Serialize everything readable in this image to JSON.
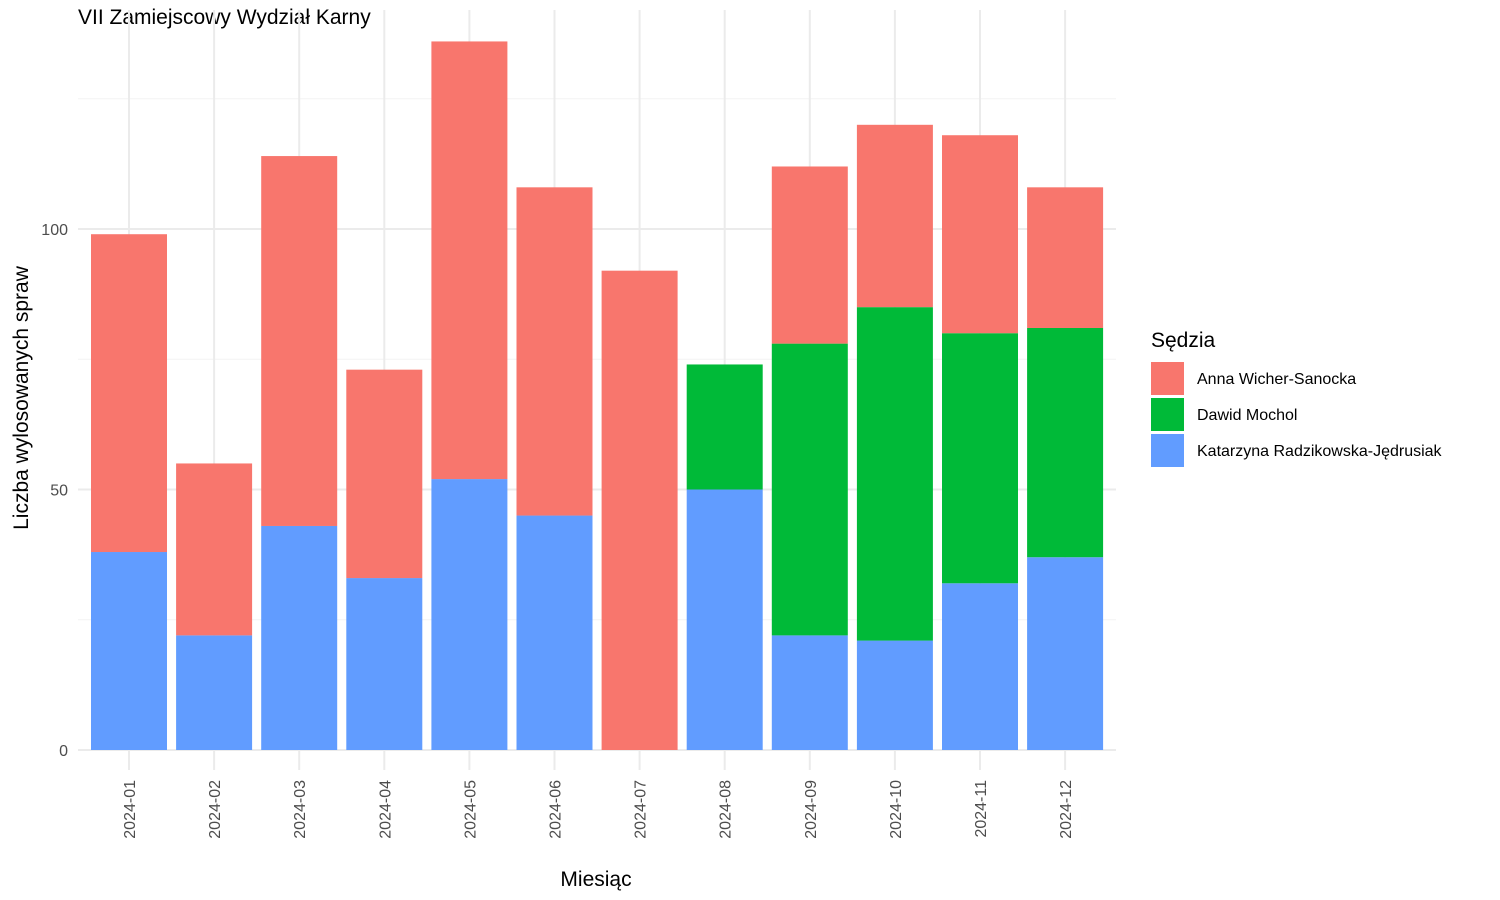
{
  "chart_data": {
    "type": "bar",
    "stacked": true,
    "title": "VII Zamiejscowy Wydział Karny",
    "xlabel": "Miesiąc",
    "ylabel": "Liczba wylosowanych spraw",
    "ylim": [
      0,
      140
    ],
    "yticks": [
      0,
      50,
      100
    ],
    "grid": true,
    "legend": {
      "title": "Sędzia",
      "position": "right"
    },
    "categories": [
      "2024-01",
      "2024-02",
      "2024-03",
      "2024-04",
      "2024-05",
      "2024-06",
      "2024-07",
      "2024-08",
      "2024-09",
      "2024-10",
      "2024-11",
      "2024-12"
    ],
    "series": [
      {
        "name": "Katarzyna Radzikowska-Jędrusiak",
        "color": "#619CFF",
        "values": [
          38,
          22,
          43,
          33,
          52,
          45,
          0,
          50,
          22,
          21,
          32,
          37
        ]
      },
      {
        "name": "Dawid Mochol",
        "color": "#00BA38",
        "values": [
          0,
          0,
          0,
          0,
          0,
          0,
          0,
          24,
          56,
          64,
          48,
          44
        ]
      },
      {
        "name": "Anna Wicher-Sanocka",
        "color": "#F8766D",
        "values": [
          61,
          33,
          71,
          40,
          84,
          63,
          92,
          0,
          34,
          35,
          38,
          27
        ]
      }
    ],
    "legend_order": [
      "Anna Wicher-Sanocka",
      "Dawid Mochol",
      "Katarzyna Radzikowska-Jędrusiak"
    ]
  }
}
